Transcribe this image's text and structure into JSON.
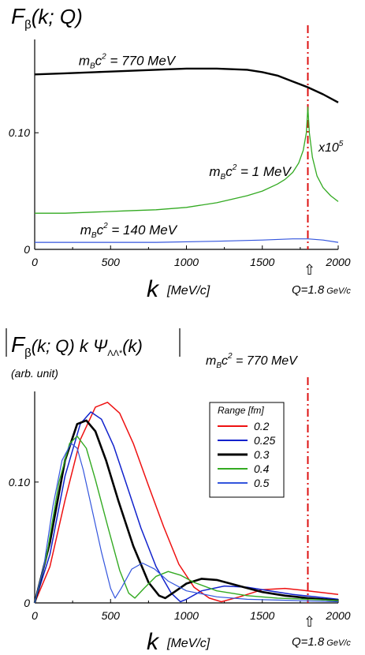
{
  "colors": {
    "black": "#000000",
    "green": "#33aa22",
    "blue": "#3355dd",
    "red": "#ee1111",
    "blue2": "#1122cc",
    "vline": "#dd1111"
  },
  "chart_data": [
    {
      "type": "line",
      "title": "F",
      "title_sub": "β",
      "title_args": "(k; Q)",
      "xlabel": "k",
      "xunit": "[MeV/c]",
      "xlim": [
        0,
        2000
      ],
      "xticks": [
        "0",
        "500",
        "1000",
        "1500",
        "2000"
      ],
      "xtick_values": [
        0,
        500,
        1000,
        1500,
        2000
      ],
      "ylim": [
        0,
        0.18
      ],
      "yticks": [
        "0",
        "0.10"
      ],
      "ytick_values": [
        0,
        0.1
      ],
      "vline": {
        "x": 1800,
        "label": "Q=1.8",
        "unit": "GeV/c",
        "marker": "⇧"
      },
      "multiplier_label": "x10",
      "multiplier_exp": "5",
      "series": [
        {
          "name": "m_B c² = 770 MeV",
          "label_main": "m",
          "label_sub": "B",
          "label_rest": "c",
          "label_sup": "2",
          "label_value": " = 770 MeV",
          "label_x": 290,
          "label_y": 0.158,
          "color_key": "black",
          "x": [
            0,
            200,
            400,
            600,
            800,
            1000,
            1200,
            1400,
            1500,
            1600,
            1700,
            1800,
            1900,
            2000
          ],
          "y": [
            0.15,
            0.151,
            0.152,
            0.153,
            0.154,
            0.155,
            0.155,
            0.154,
            0.152,
            0.149,
            0.144,
            0.139,
            0.133,
            0.126
          ]
        },
        {
          "name": "m_B c² = 1 MeV",
          "label_main": "m",
          "label_sub": "B",
          "label_rest": "c",
          "label_sup": "2",
          "label_value": " = 1 MeV",
          "label_x": 1150,
          "label_y": 0.063,
          "color_key": "green",
          "x": [
            0,
            200,
            400,
            600,
            800,
            1000,
            1200,
            1400,
            1500,
            1600,
            1650,
            1700,
            1740,
            1770,
            1790,
            1800,
            1810,
            1830,
            1860,
            1900,
            1950,
            2000
          ],
          "y": [
            0.031,
            0.031,
            0.032,
            0.033,
            0.034,
            0.036,
            0.04,
            0.046,
            0.05,
            0.056,
            0.06,
            0.066,
            0.074,
            0.085,
            0.1,
            0.122,
            0.1,
            0.079,
            0.063,
            0.053,
            0.046,
            0.041
          ]
        },
        {
          "name": "m_B c² = 140 MeV",
          "label_main": "m",
          "label_sub": "B",
          "label_rest": "c",
          "label_sup": "2",
          "label_value": " = 140 MeV",
          "label_x": 300,
          "label_y": 0.013,
          "color_key": "blue",
          "x": [
            0,
            400,
            800,
            1200,
            1500,
            1700,
            1800,
            1900,
            2000
          ],
          "y": [
            0.006,
            0.006,
            0.006,
            0.007,
            0.008,
            0.009,
            0.009,
            0.008,
            0.006
          ]
        }
      ]
    },
    {
      "type": "line",
      "title": "F",
      "title_sub": "β",
      "title_args": "(k; Q) k Ψ",
      "title_sub2": "ΛΛ*",
      "title_args2": "(k)",
      "subtitle": "(arb. unit)",
      "annotation": "m_B c² = 770 MeV",
      "annotation_main": "m",
      "annotation_sub": "B",
      "annotation_rest": "c",
      "annotation_sup": "2",
      "annotation_value": " = 770 MeV",
      "xlabel": "k",
      "xunit": "[MeV/c]",
      "xlim": [
        0,
        2000
      ],
      "xticks": [
        "0",
        "500",
        "1000",
        "1500",
        "2000"
      ],
      "xtick_values": [
        0,
        500,
        1000,
        1500,
        2000
      ],
      "ylim": [
        0,
        0.175
      ],
      "yticks": [
        "0",
        "0.10"
      ],
      "ytick_values": [
        0,
        0.1
      ],
      "vline": {
        "x": 1800,
        "label": "Q=1.8",
        "unit": "GeV/c",
        "marker": "⇧"
      },
      "legend": {
        "title": "Range [fm]",
        "placement": "top-right"
      },
      "series": [
        {
          "name": "0.2",
          "color_key": "red",
          "x": [
            0,
            100,
            200,
            300,
            400,
            480,
            560,
            650,
            750,
            850,
            950,
            1050,
            1150,
            1230,
            1350,
            1500,
            1650,
            1800,
            2000
          ],
          "y": [
            0,
            0.03,
            0.085,
            0.135,
            0.162,
            0.166,
            0.157,
            0.132,
            0.097,
            0.063,
            0.032,
            0.013,
            0.004,
            0.001,
            0.005,
            0.011,
            0.012,
            0.01,
            0.007
          ]
        },
        {
          "name": "0.25",
          "color_key": "blue2",
          "x": [
            0,
            100,
            200,
            300,
            370,
            440,
            520,
            600,
            700,
            800,
            900,
            960,
            1000,
            1100,
            1250,
            1400,
            1550,
            1700,
            1850,
            2000
          ],
          "y": [
            0,
            0.04,
            0.105,
            0.148,
            0.158,
            0.152,
            0.13,
            0.1,
            0.062,
            0.03,
            0.008,
            0.001,
            0.003,
            0.01,
            0.014,
            0.013,
            0.01,
            0.007,
            0.005,
            0.003
          ]
        },
        {
          "name": "0.3",
          "color_key": "black",
          "x": [
            0,
            100,
            200,
            280,
            340,
            400,
            470,
            550,
            650,
            750,
            820,
            860,
            920,
            1000,
            1100,
            1200,
            1350,
            1500,
            1650,
            1800,
            2000
          ],
          "y": [
            0,
            0.05,
            0.118,
            0.148,
            0.151,
            0.142,
            0.118,
            0.085,
            0.047,
            0.017,
            0.006,
            0.004,
            0.009,
            0.016,
            0.02,
            0.019,
            0.014,
            0.009,
            0.006,
            0.004,
            0.002
          ]
        },
        {
          "name": "0.4",
          "color_key": "green",
          "x": [
            0,
            80,
            160,
            230,
            280,
            340,
            400,
            480,
            560,
            620,
            660,
            720,
            800,
            880,
            960,
            1050,
            1200,
            1400,
            1600,
            1800,
            2000
          ],
          "y": [
            0,
            0.04,
            0.1,
            0.132,
            0.138,
            0.128,
            0.102,
            0.064,
            0.027,
            0.008,
            0.004,
            0.012,
            0.022,
            0.026,
            0.023,
            0.017,
            0.01,
            0.006,
            0.004,
            0.003,
            0.002
          ]
        },
        {
          "name": "0.5",
          "color_key": "blue",
          "x": [
            0,
            60,
            120,
            180,
            240,
            280,
            320,
            380,
            440,
            500,
            530,
            570,
            640,
            710,
            790,
            880,
            1000,
            1200,
            1400,
            1700,
            2000
          ],
          "y": [
            0,
            0.03,
            0.08,
            0.118,
            0.132,
            0.128,
            0.11,
            0.076,
            0.042,
            0.012,
            0.004,
            0.012,
            0.028,
            0.033,
            0.028,
            0.018,
            0.01,
            0.005,
            0.003,
            0.002,
            0.001
          ]
        }
      ]
    }
  ]
}
